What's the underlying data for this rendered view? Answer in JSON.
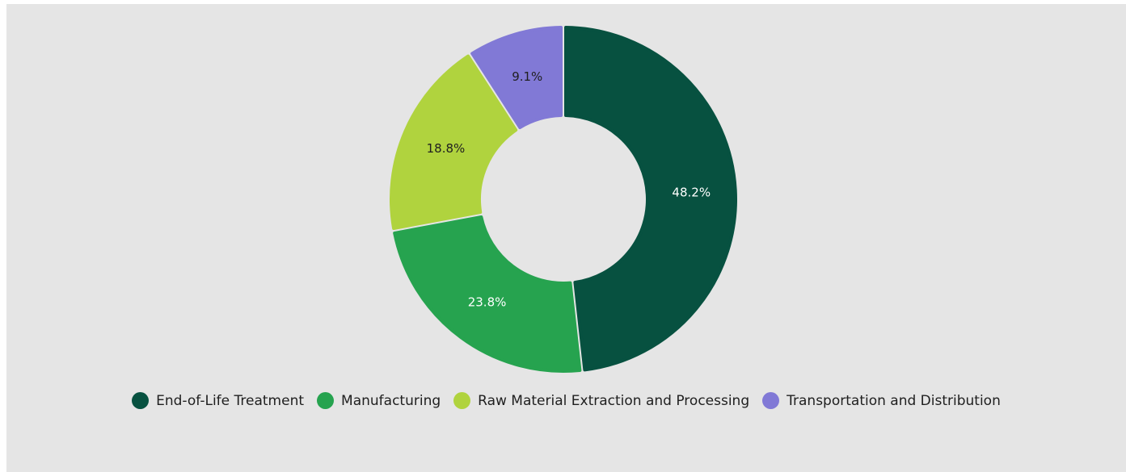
{
  "chart_data": {
    "type": "pie",
    "variant": "donut",
    "title": "",
    "legend_position": "bottom",
    "categories": [
      "End-of-Life Treatment",
      "Manufacturing",
      "Raw Material Extraction and Processing",
      "Transportation and Distribution"
    ],
    "values": [
      48.2,
      23.8,
      18.8,
      9.1
    ],
    "labels": [
      "48.2%",
      "23.8%",
      "18.8%",
      "9.1%"
    ],
    "colors": [
      "#075140",
      "#26a34f",
      "#b0d33e",
      "#8179d6"
    ],
    "label_colors": [
      "#ffffff",
      "#ffffff",
      "#1f1f1f",
      "#1f1f1f"
    ]
  }
}
